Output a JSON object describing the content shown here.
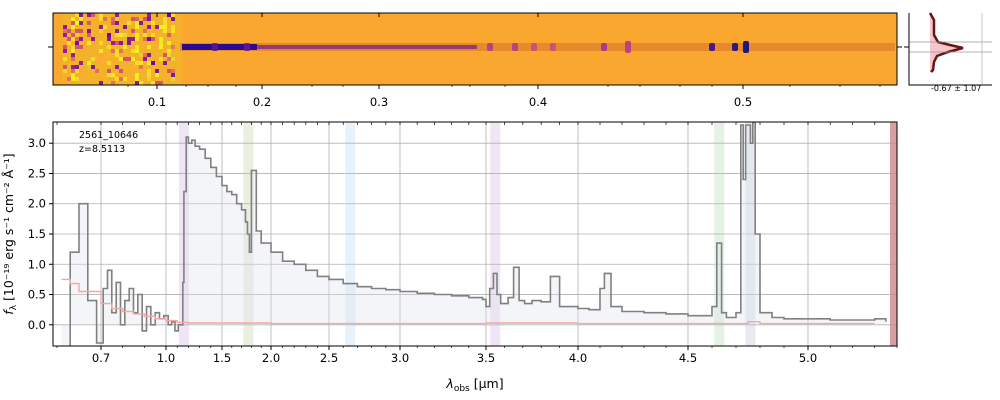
{
  "chart_data": [
    {
      "type": "heatmap",
      "panel": "2d-spectrum",
      "colormap": "plasma",
      "x_top_ticks": [
        "0.1",
        "0.2",
        "0.3",
        "0.4",
        "0.5"
      ],
      "x_top_tick_values": [
        0.1,
        0.2,
        0.3,
        0.4,
        0.5
      ]
    },
    {
      "type": "line",
      "panel": "spatial-profile",
      "annotation": "-0.67 ± 1.07",
      "line_color": "#6b1414",
      "fill_color": "#f4c7cc"
    },
    {
      "type": "line",
      "panel": "1d-spectrum",
      "object_id": "2561_10646",
      "redshift_label": "z=8.5113",
      "xlabel_main": "λ",
      "xlabel_sub": "obs",
      "xlabel_unit": " [μm]",
      "ylabel_main": "f",
      "ylabel_sub": "λ",
      "ylabel_unit": " [10⁻¹⁹ erg s⁻¹ cm⁻² Å⁻¹]",
      "xlim": [
        0.6,
        5.4
      ],
      "ylim": [
        -0.35,
        3.35
      ],
      "x_ticks": [
        0.7,
        1.0,
        1.5,
        2.0,
        2.5,
        3.0,
        3.5,
        4.0,
        4.5,
        5.0
      ],
      "x_tick_labels": [
        "0.7",
        "1.0",
        "1.5",
        "2.0",
        "2.5",
        "3.0",
        "3.5",
        "4.0",
        "4.5",
        "5.0"
      ],
      "y_ticks": [
        0.0,
        0.5,
        1.0,
        1.5,
        2.0,
        2.5,
        3.0
      ],
      "y_tick_labels": [
        "0.0",
        "0.5",
        "1.0",
        "1.5",
        "2.0",
        "2.5",
        "3.0"
      ],
      "grid": true,
      "line_bands": [
        {
          "x": 1.16,
          "color": "#c8a2d8"
        },
        {
          "x": 1.77,
          "color": "#b5c98e"
        },
        {
          "x": 2.65,
          "color": "#a9cfee"
        },
        {
          "x": 3.55,
          "color": "#c8a2d8"
        },
        {
          "x": 4.63,
          "color": "#9fd49f"
        },
        {
          "x": 4.76,
          "color": "#a9b8cc"
        }
      ],
      "series": [
        {
          "color": "#808080",
          "x": [
            0.61,
            0.63,
            0.65,
            0.67,
            0.69,
            0.71,
            0.73,
            0.75,
            0.77,
            0.79,
            0.81,
            0.83,
            0.85,
            0.87,
            0.89,
            0.91,
            0.93,
            0.95,
            0.97,
            0.99,
            1.02,
            1.05,
            1.08,
            1.11,
            1.13,
            1.15,
            1.16,
            1.18,
            1.2,
            1.23,
            1.26,
            1.3,
            1.35,
            1.4,
            1.45,
            1.5,
            1.55,
            1.6,
            1.65,
            1.7,
            1.74,
            1.76,
            1.78,
            1.8,
            1.85,
            1.9,
            2.0,
            2.1,
            2.2,
            2.3,
            2.4,
            2.5,
            2.6,
            2.7,
            2.8,
            2.9,
            3.0,
            3.1,
            3.2,
            3.3,
            3.4,
            3.48,
            3.5,
            3.52,
            3.54,
            3.56,
            3.58,
            3.62,
            3.65,
            3.68,
            3.71,
            3.75,
            3.8,
            3.85,
            3.9,
            4.0,
            4.05,
            4.1,
            4.12,
            4.15,
            4.2,
            4.3,
            4.4,
            4.5,
            4.55,
            4.6,
            4.62,
            4.64,
            4.66,
            4.7,
            4.72,
            4.73,
            4.74,
            4.76,
            4.77,
            4.78,
            4.8,
            4.85,
            4.9,
            5.0,
            5.1,
            5.2,
            5.3,
            5.35
          ],
          "y": [
            -0.4,
            1.2,
            2.0,
            0.4,
            -0.3,
            0.6,
            0.9,
            0.2,
            0.7,
            0.0,
            0.4,
            0.6,
            0.2,
            0.5,
            -0.1,
            0.3,
            0.0,
            0.2,
            0.1,
            0.15,
            0.0,
            0.05,
            -0.1,
            0.0,
            0.0,
            0.7,
            2.2,
            3.1,
            3.0,
            3.05,
            2.95,
            2.9,
            2.75,
            2.6,
            2.45,
            2.3,
            2.2,
            2.15,
            2.0,
            1.9,
            1.7,
            1.5,
            1.2,
            2.55,
            1.55,
            1.35,
            1.2,
            1.05,
            1.0,
            0.9,
            0.8,
            0.75,
            0.68,
            0.63,
            0.6,
            0.58,
            0.55,
            0.52,
            0.5,
            0.48,
            0.45,
            0.42,
            0.3,
            0.6,
            0.85,
            0.5,
            0.35,
            0.45,
            0.95,
            0.4,
            0.35,
            0.4,
            0.38,
            0.8,
            0.3,
            0.27,
            0.25,
            0.6,
            0.85,
            0.3,
            0.22,
            0.2,
            0.18,
            0.15,
            0.15,
            0.3,
            1.35,
            0.2,
            0.12,
            0.2,
            3.3,
            2.4,
            3.3,
            3.0,
            3.35,
            1.5,
            0.2,
            0.12,
            0.1,
            0.1,
            0.08,
            0.08,
            0.1,
            0.05
          ]
        },
        {
          "color": "#f4a6a6",
          "x": [
            0.61,
            0.63,
            0.65,
            0.7,
            0.75,
            0.8,
            0.85,
            0.9,
            0.95,
            1.0,
            1.1,
            1.2,
            1.5,
            2.0,
            2.5,
            3.0,
            3.5,
            4.0,
            4.5,
            4.6,
            4.7,
            4.75,
            4.8,
            5.0,
            5.3
          ],
          "y": [
            0.75,
            0.68,
            0.55,
            0.35,
            0.27,
            0.22,
            0.18,
            0.14,
            0.1,
            0.07,
            0.04,
            0.03,
            0.03,
            0.02,
            0.02,
            0.02,
            0.03,
            0.02,
            0.02,
            0.02,
            0.02,
            0.05,
            0.02,
            0.02,
            0.02
          ]
        }
      ]
    }
  ]
}
